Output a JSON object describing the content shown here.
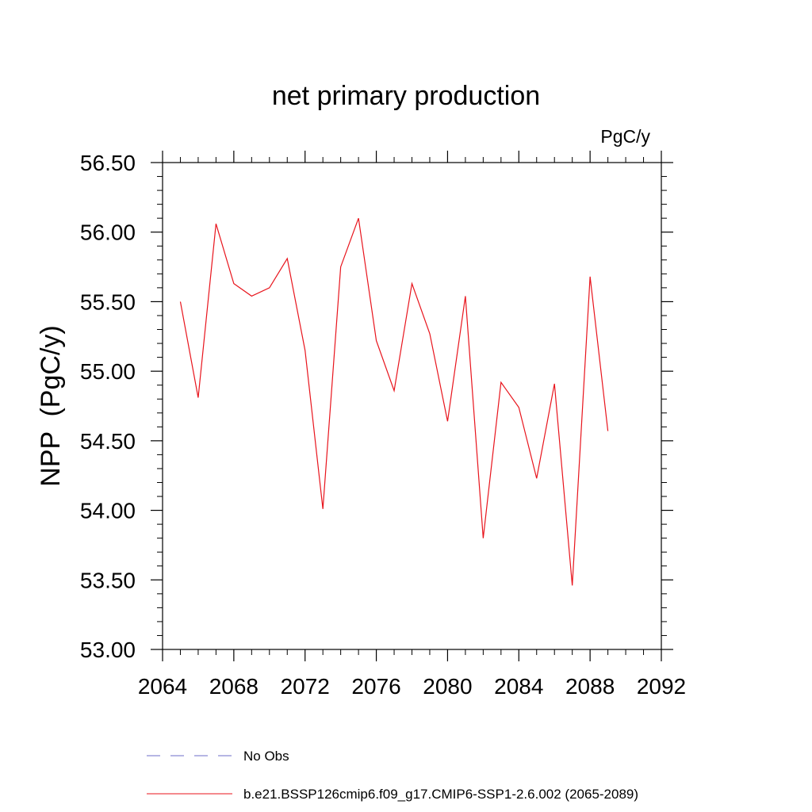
{
  "chart_data": {
    "type": "line",
    "title": "net primary production",
    "units_label": "PgC/y",
    "xlabel": "",
    "ylabel": "NPP  (PgC/y)",
    "xlim": [
      2064,
      2092
    ],
    "ylim": [
      53.0,
      56.5
    ],
    "x_ticks": [
      "2064",
      "2068",
      "2072",
      "2076",
      "2080",
      "2084",
      "2088",
      "2092"
    ],
    "y_ticks": [
      "53.00",
      "53.50",
      "54.00",
      "54.50",
      "55.00",
      "55.50",
      "56.00",
      "56.50"
    ],
    "x": [
      2065,
      2066,
      2067,
      2068,
      2069,
      2070,
      2071,
      2072,
      2073,
      2074,
      2075,
      2076,
      2077,
      2078,
      2079,
      2080,
      2081,
      2082,
      2083,
      2084,
      2085,
      2086,
      2087,
      2088,
      2089
    ],
    "series": [
      {
        "name": "b.e21.BSSP126cmip6.f09_g17.CMIP6-SSP1-2.6.002 (2065-2089)",
        "color": "#e8141c",
        "style": "solid",
        "values": [
          55.5,
          54.81,
          56.06,
          55.63,
          55.54,
          55.6,
          55.81,
          55.15,
          54.01,
          55.75,
          56.1,
          55.22,
          54.86,
          55.63,
          55.27,
          54.64,
          55.54,
          53.8,
          54.92,
          54.74,
          54.23,
          54.91,
          53.46,
          55.68,
          54.57
        ]
      }
    ],
    "legend": [
      {
        "label": "No Obs",
        "color": "#6e6ec8",
        "style": "dashed"
      },
      {
        "label": "b.e21.BSSP126cmip6.f09_g17.CMIP6-SSP1-2.6.002 (2065-2089)",
        "color": "#e8141c",
        "style": "solid"
      }
    ],
    "legend_position": "bottom-left"
  }
}
